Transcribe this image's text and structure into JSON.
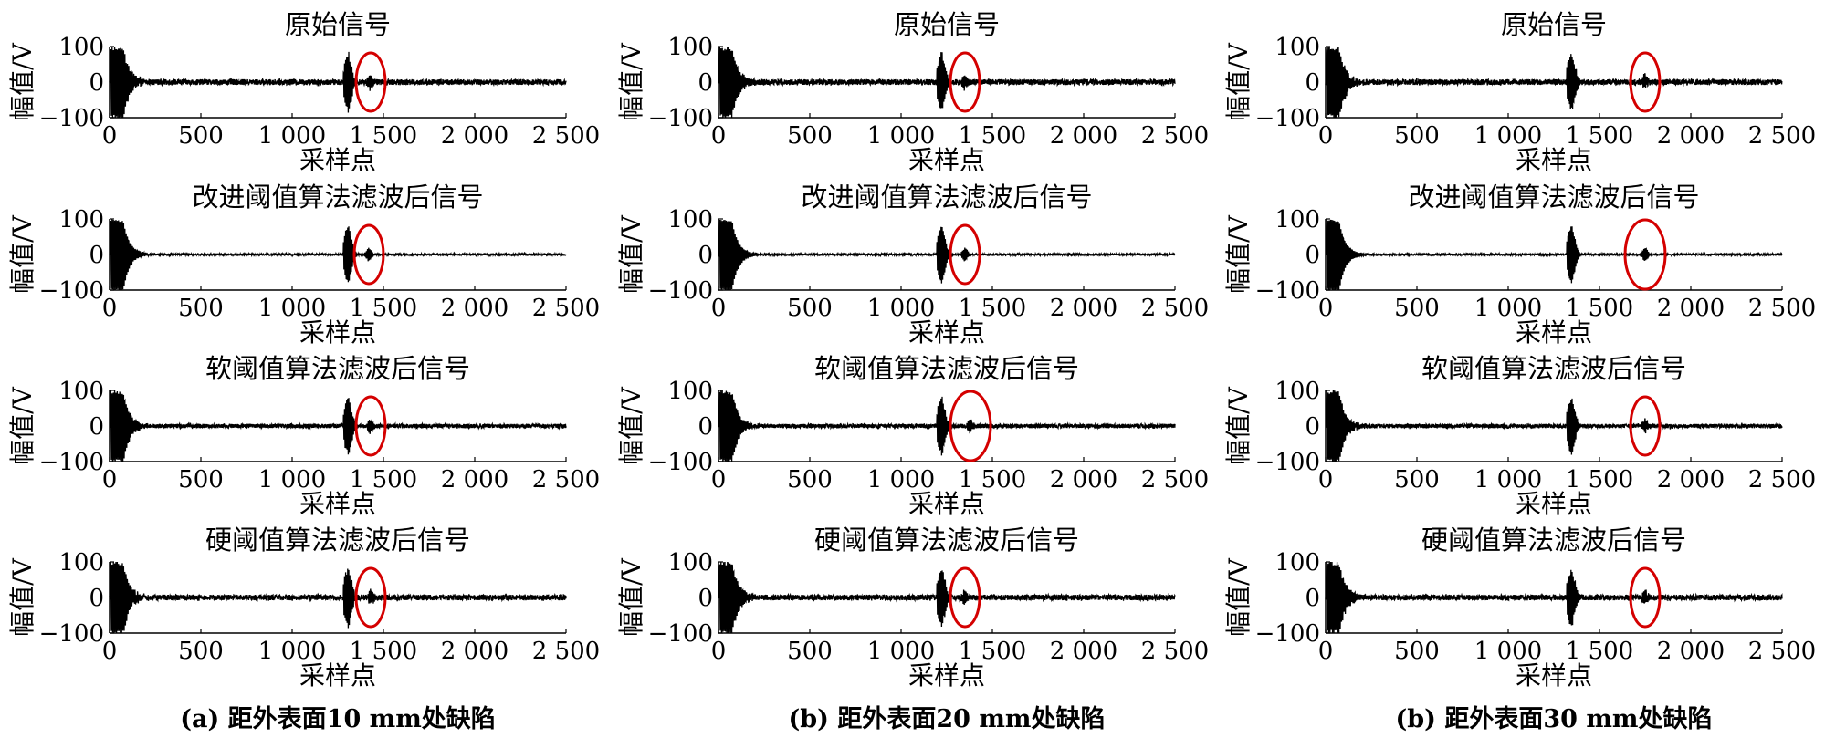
{
  "figure": {
    "columns": [
      {
        "caption": "(a) 距外表面10 mm处缺陷"
      },
      {
        "caption": "(b) 距外表面20 mm处缺陷"
      },
      {
        "caption": "(b) 距外表面30 mm处缺陷"
      }
    ]
  },
  "chart_data": {
    "type": "line",
    "ylabel": "幅值/V",
    "xlabel": "采样点",
    "xlim": [
      0,
      2500
    ],
    "ylim": [
      -100,
      100
    ],
    "x_ticks": [
      0,
      500,
      1000,
      1500,
      2000,
      2500
    ],
    "x_tick_labels": [
      "0",
      "500",
      "1 000",
      "1 500",
      "2 000",
      "2 500"
    ],
    "y_ticks": [
      100,
      0,
      -100
    ],
    "y_tick_labels": [
      "100",
      "0",
      "−100"
    ],
    "line_color": "#000000",
    "marker_color": "#d40000",
    "row_titles": [
      "原始信号",
      "改进阈值算法滤波后信号",
      "软阈值算法滤波后信号",
      "硬阈值算法滤波后信号"
    ],
    "panels": [
      {
        "column": 0,
        "title": "原始信号",
        "echo_start": 1300,
        "defect_marker_x": 1430,
        "noise_amplitude": 4
      },
      {
        "column": 0,
        "title": "改进阈值算法滤波后信号",
        "echo_start": 1300,
        "defect_marker_x": 1420,
        "noise_amplitude": 1.2
      },
      {
        "column": 0,
        "title": "软阈值算法滤波后信号",
        "echo_start": 1300,
        "defect_marker_x": 1430,
        "noise_amplitude": 3
      },
      {
        "column": 0,
        "title": "硬阈值算法滤波后信号",
        "echo_start": 1300,
        "defect_marker_x": 1430,
        "noise_amplitude": 4
      },
      {
        "column": 1,
        "title": "原始信号",
        "echo_start": 1215,
        "defect_marker_x": 1350,
        "noise_amplitude": 4
      },
      {
        "column": 1,
        "title": "改进阈值算法滤波后信号",
        "echo_start": 1215,
        "defect_marker_x": 1350,
        "noise_amplitude": 1.2
      },
      {
        "column": 1,
        "title": "软阈值算法滤波后信号",
        "echo_start": 1215,
        "defect_marker_x": 1380,
        "noise_amplitude": 3
      },
      {
        "column": 1,
        "title": "硬阈值算法滤波后信号",
        "echo_start": 1215,
        "defect_marker_x": 1350,
        "noise_amplitude": 4
      },
      {
        "column": 2,
        "title": "原始信号",
        "echo_start": 1340,
        "defect_marker_x": 1750,
        "noise_amplitude": 4
      },
      {
        "column": 2,
        "title": "改进阈值算法滤波后信号",
        "echo_start": 1340,
        "defect_marker_x": 1750,
        "noise_amplitude": 1.2
      },
      {
        "column": 2,
        "title": "软阈值算法滤波后信号",
        "echo_start": 1340,
        "defect_marker_x": 1750,
        "noise_amplitude": 3
      },
      {
        "column": 2,
        "title": "硬阈值算法滤波后信号",
        "echo_start": 1340,
        "defect_marker_x": 1750,
        "noise_amplitude": 4
      }
    ]
  }
}
